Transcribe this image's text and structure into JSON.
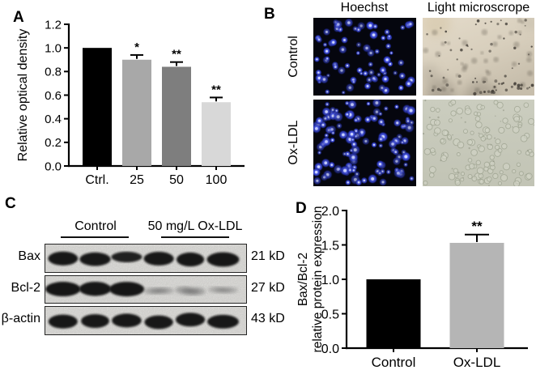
{
  "figure": {
    "panels": {
      "a": {
        "label": "A"
      },
      "b": {
        "label": "B",
        "column_headers": [
          "Hoechst",
          "Light microscrope"
        ],
        "row_labels": [
          "Control",
          "Ox-LDL"
        ],
        "images": [
          {
            "name": "hoechst-control",
            "type": "fluorescence",
            "background": "#05060e",
            "dot_color": "#4656e6",
            "dot_highlight": "#d7ddff",
            "dot_count": 78,
            "dot_scale": 1.0
          },
          {
            "name": "light-microscope-control",
            "type": "brightfield-beige",
            "background": "#d8cfbd",
            "speck_color": "#46413a",
            "speck_count": 85
          },
          {
            "name": "hoechst-oxldl",
            "type": "fluorescence",
            "background": "#05060e",
            "dot_color": "#4656e6",
            "dot_highlight": "#d7ddff",
            "dot_count": 125,
            "dot_scale": 1.12
          },
          {
            "name": "light-microscope-oxldl",
            "type": "brightfield-gray",
            "background": "#c6c8ba",
            "cell_color": "#9ba08e",
            "cell_count": 115
          }
        ]
      },
      "c": {
        "label": "C",
        "group_headers": [
          "Control",
          "50 mg/L Ox-LDL"
        ],
        "rows": [
          {
            "protein": "Bax",
            "mw": "21 kD",
            "bands": [
              0.92,
              0.88,
              0.55,
              0.9,
              0.93,
              0.98
            ]
          },
          {
            "protein": "Bcl-2",
            "mw": "27 kD",
            "bands": [
              1.0,
              0.95,
              1.0,
              0.22,
              0.34,
              0.15
            ]
          },
          {
            "protein": "β-actin",
            "mw": "43 kD",
            "bands": [
              0.92,
              0.9,
              0.9,
              0.88,
              0.9,
              0.9
            ]
          }
        ]
      },
      "d": {
        "label": "D"
      }
    }
  },
  "chart_data": [
    {
      "id": "A",
      "type": "bar",
      "title": "",
      "categories": [
        "Ctrl.",
        "25",
        "50",
        "100"
      ],
      "values": [
        1.0,
        0.9,
        0.84,
        0.54
      ],
      "errors": [
        0,
        0.04,
        0.04,
        0.04
      ],
      "significance": [
        "",
        "*",
        "**",
        "**"
      ],
      "bar_colors": [
        "#000000",
        "#a8a8a8",
        "#7e7e7e",
        "#d8d8d8"
      ],
      "xlabel": "",
      "ylabel": "Relative optical density",
      "ylim": [
        0,
        1.2
      ],
      "ytick_step": 0.2,
      "grid": false,
      "legend": false
    },
    {
      "id": "D",
      "type": "bar",
      "title": "",
      "categories": [
        "Control",
        "Ox-LDL"
      ],
      "values": [
        1.0,
        1.53
      ],
      "errors": [
        0,
        0.12
      ],
      "significance": [
        "",
        "**"
      ],
      "bar_colors": [
        "#000000",
        "#b5b5b5"
      ],
      "xlabel": "",
      "ylabel": "Bax/Bcl-2 relative protein expression",
      "ylabel_lines": [
        "Bax/Bcl-2",
        "relative protein expression"
      ],
      "ylim": [
        0,
        2.0
      ],
      "ytick_step": 0.5,
      "grid": false,
      "legend": false
    }
  ]
}
